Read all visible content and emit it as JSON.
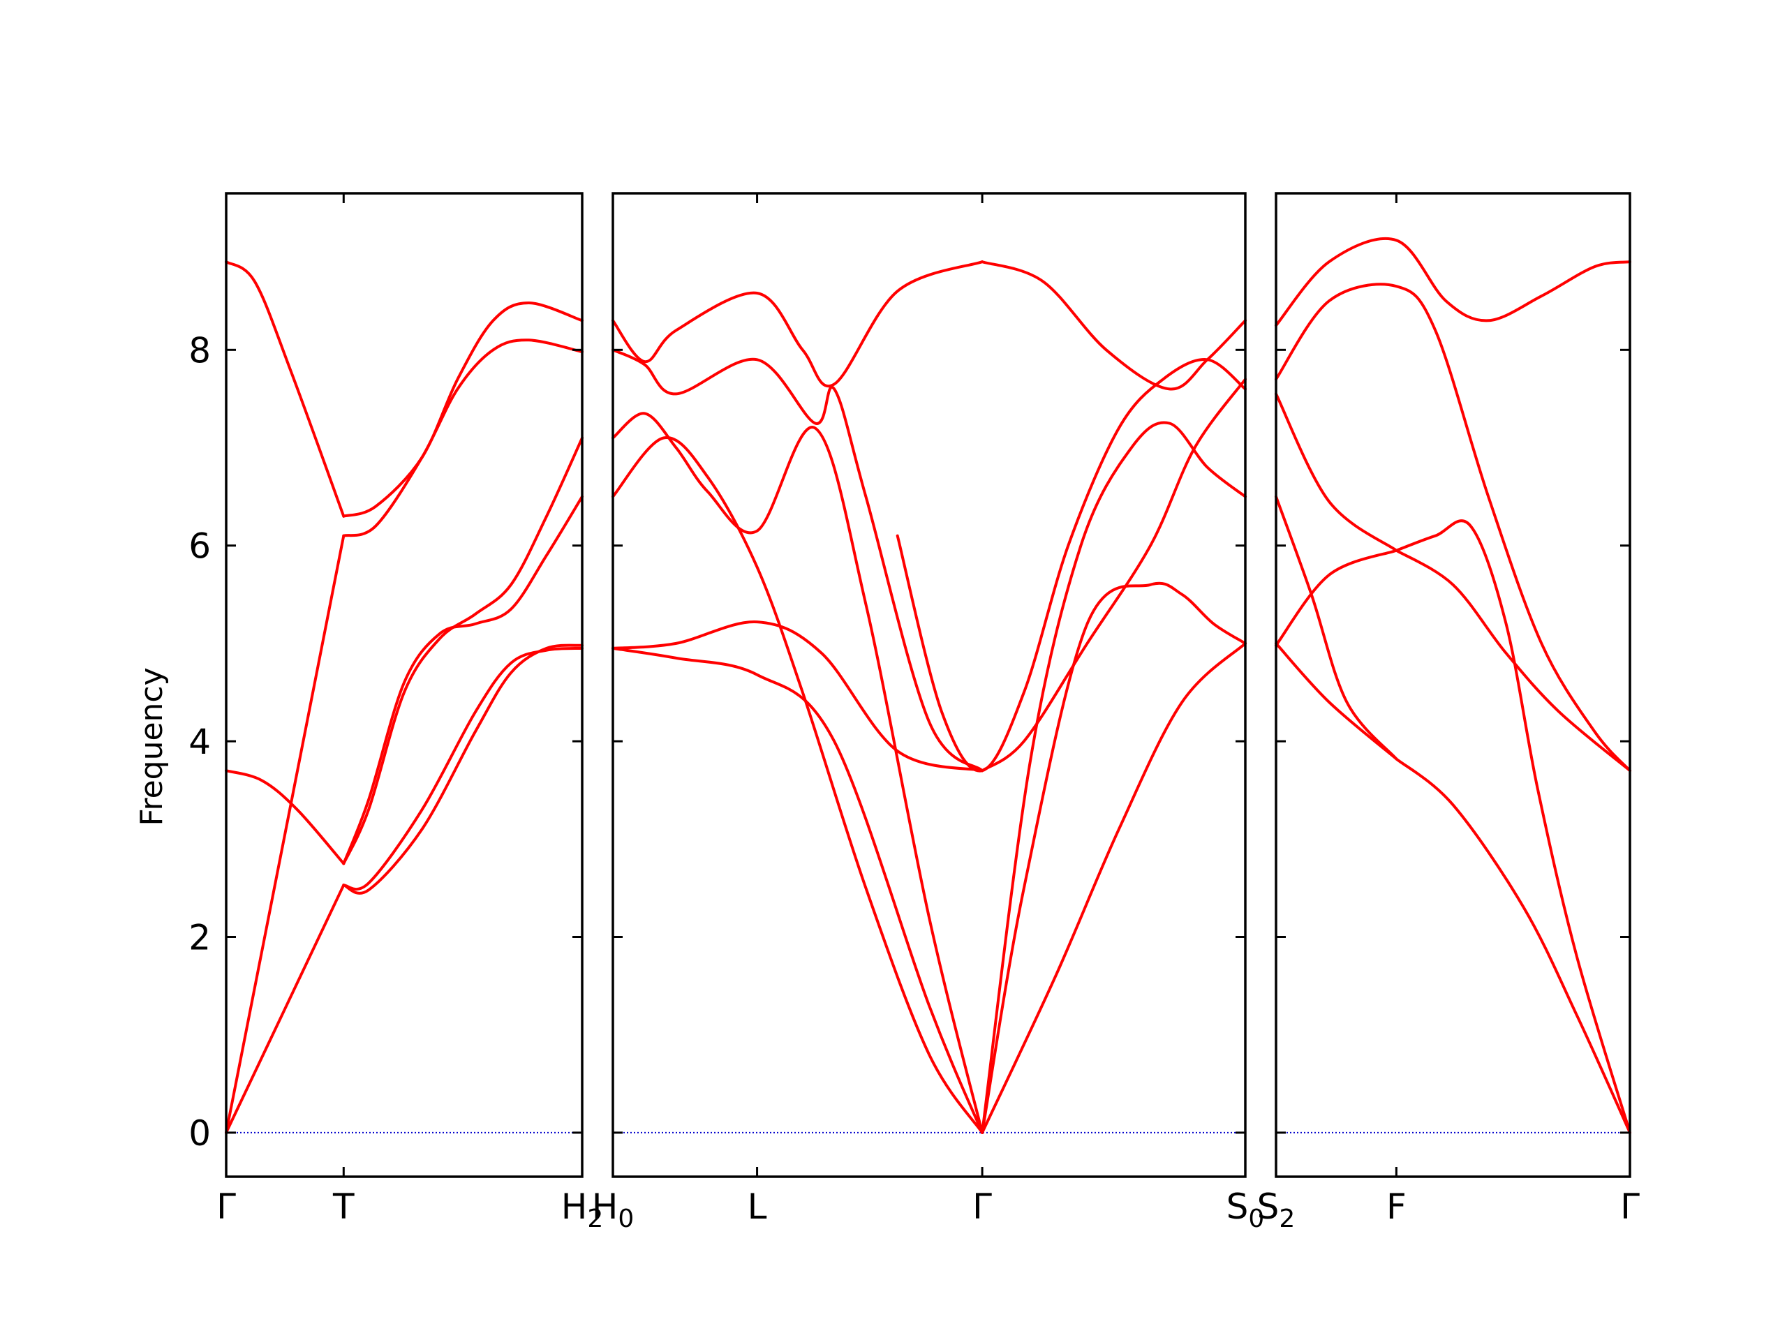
{
  "chart_data": {
    "type": "line",
    "ylabel": "Frequency",
    "ylim": [
      -0.45,
      9.6
    ],
    "yticks": [
      0,
      2,
      4,
      6,
      8
    ],
    "colors": {
      "band": "#ff0000",
      "zero_line": "#0000cc",
      "axes": "#000000"
    },
    "zero_line_style": "dotted",
    "panels": [
      {
        "xticks": [
          {
            "pos": 0.0,
            "label": "Γ",
            "sub": ""
          },
          {
            "pos": 0.33,
            "label": "T",
            "sub": ""
          },
          {
            "pos": 1.0,
            "label": "H",
            "sub": "2"
          }
        ],
        "bands": [
          {
            "x": [
              0,
              0.33
            ],
            "y": [
              0,
              2.53
            ]
          },
          {
            "x": [
              0.33,
              0.4,
              0.55,
              0.7,
              0.8,
              0.9,
              1.0
            ],
            "y": [
              2.53,
              2.48,
              3.1,
              4.1,
              4.7,
              4.95,
              4.98
            ]
          },
          {
            "x": [
              0.33,
              0.4,
              0.55,
              0.7,
              0.8,
              0.9,
              1.0
            ],
            "y": [
              2.53,
              2.55,
              3.3,
              4.3,
              4.8,
              4.93,
              4.95
            ]
          },
          {
            "x": [
              0,
              0.33
            ],
            "y": [
              0,
              6.1
            ]
          },
          {
            "x": [
              0.33,
              0.42,
              0.55,
              0.65,
              0.75,
              0.85,
              1.0
            ],
            "y": [
              6.1,
              6.2,
              6.9,
              7.6,
              8.0,
              8.1,
              7.98
            ]
          },
          {
            "x": [
              0.33,
              0.42,
              0.55,
              0.65,
              0.75,
              0.85,
              1.0
            ],
            "y": [
              6.3,
              6.4,
              6.9,
              7.7,
              8.3,
              8.48,
              8.3
            ]
          },
          {
            "x": [
              0,
              0.1,
              0.2,
              0.33
            ],
            "y": [
              3.7,
              3.6,
              3.3,
              2.75
            ]
          },
          {
            "x": [
              0.33,
              0.4,
              0.5,
              0.6,
              0.7,
              0.8,
              0.9,
              1.0
            ],
            "y": [
              2.75,
              3.3,
              4.5,
              5.05,
              5.3,
              5.6,
              6.3,
              7.1
            ]
          },
          {
            "x": [
              0.33,
              0.4,
              0.5,
              0.6,
              0.7,
              0.8,
              0.9,
              1.0
            ],
            "y": [
              2.75,
              3.4,
              4.6,
              5.1,
              5.2,
              5.35,
              5.9,
              6.5
            ]
          },
          {
            "x": [
              0,
              0.08,
              0.18,
              0.33
            ],
            "y": [
              8.9,
              8.7,
              7.8,
              6.3
            ]
          }
        ]
      },
      {
        "xticks": [
          {
            "pos": 0.0,
            "label": "H",
            "sub": "0"
          },
          {
            "pos": 0.228,
            "label": "L",
            "sub": ""
          },
          {
            "pos": 0.584,
            "label": "Γ",
            "sub": ""
          },
          {
            "pos": 1.0,
            "label": "S",
            "sub": "0"
          }
        ],
        "bands": [
          {
            "x": [
              0,
              0.1,
              0.228,
              0.35,
              0.5,
              0.584
            ],
            "y": [
              4.95,
              4.85,
              4.68,
              4.0,
              1.3,
              0
            ]
          },
          {
            "x": [
              0,
              0.1,
              0.228,
              0.33,
              0.45,
              0.584
            ],
            "y": [
              4.95,
              5.0,
              5.22,
              4.9,
              3.9,
              3.7
            ]
          },
          {
            "x": [
              0.584,
              0.7,
              0.8,
              0.9,
              1.0
            ],
            "y": [
              0,
              1.6,
              3.1,
              4.4,
              5.0
            ]
          },
          {
            "x": [
              0,
              0.08,
              0.15,
              0.228,
              0.3,
              0.4,
              0.5,
              0.584
            ],
            "y": [
              6.5,
              7.1,
              6.7,
              5.78,
              4.5,
              2.5,
              0.8,
              0
            ]
          },
          {
            "x": [
              0.584,
              0.65,
              0.75,
              0.85,
              0.9,
              0.95,
              1.0
            ],
            "y": [
              0,
              2.5,
              5.2,
              5.6,
              5.5,
              5.2,
              5.0
            ]
          },
          {
            "x": [
              0,
              0.05,
              0.1,
              0.15,
              0.228,
              0.32,
              0.4,
              0.5,
              0.584
            ],
            "y": [
              7.1,
              7.35,
              7.0,
              6.55,
              6.15,
              7.2,
              5.4,
              2.2,
              0
            ]
          },
          {
            "x": [
              0.584,
              0.66,
              0.74,
              0.82,
              0.88,
              0.94,
              1.0
            ],
            "y": [
              0,
              3.8,
              6.0,
              7.0,
              7.25,
              6.8,
              6.5
            ]
          },
          {
            "x": [
              0,
              0.05,
              0.1,
              0.228,
              0.32,
              0.35,
              0.4,
              0.5,
              0.584
            ],
            "y": [
              8.0,
              7.85,
              7.55,
              7.9,
              7.25,
              7.6,
              6.5,
              4.2,
              3.7
            ]
          },
          {
            "x": [
              0.584,
              0.65,
              0.75,
              0.85,
              0.92,
              1.0
            ],
            "y": [
              3.7,
              4.0,
              5.0,
              6.0,
              7.0,
              7.7
            ]
          },
          {
            "x": [
              0,
              0.05,
              0.1,
              0.228,
              0.3,
              0.35,
              0.45,
              0.584
            ],
            "y": [
              8.3,
              7.88,
              8.2,
              8.58,
              8.0,
              7.65,
              8.6,
              8.9
            ]
          },
          {
            "x": [
              0.584,
              0.68,
              0.78,
              0.88,
              0.94,
              1.0
            ],
            "y": [
              8.9,
              8.7,
              8.0,
              7.6,
              7.9,
              8.3
            ]
          },
          {
            "x": [
              0.45,
              0.52,
              0.584,
              0.65,
              0.72,
              0.8,
              0.87,
              0.94,
              1.0
            ],
            "y": [
              6.1,
              4.3,
              3.7,
              4.5,
              6.0,
              7.2,
              7.7,
              7.9,
              7.6
            ]
          }
        ]
      },
      {
        "xticks": [
          {
            "pos": 0.0,
            "label": "S",
            "sub": "2"
          },
          {
            "pos": 0.34,
            "label": "F",
            "sub": ""
          },
          {
            "pos": 1.0,
            "label": "Γ",
            "sub": ""
          }
        ],
        "bands": [
          {
            "x": [
              0,
              0.15,
              0.34
            ],
            "y": [
              5.0,
              4.4,
              3.82
            ]
          },
          {
            "x": [
              0.34,
              0.5,
              0.7,
              0.85,
              1.0
            ],
            "y": [
              3.82,
              3.35,
              2.3,
              1.2,
              0
            ]
          },
          {
            "x": [
              0,
              0.1,
              0.2,
              0.34
            ],
            "y": [
              6.5,
              5.5,
              4.4,
              3.82
            ]
          },
          {
            "x": [
              0,
              0.15,
              0.34
            ],
            "y": [
              4.98,
              5.7,
              5.95
            ]
          },
          {
            "x": [
              0.34,
              0.5,
              0.65,
              0.8,
              1.0
            ],
            "y": [
              5.95,
              5.6,
              4.9,
              4.3,
              3.7
            ]
          },
          {
            "x": [
              0,
              0.15,
              0.34
            ],
            "y": [
              7.55,
              6.45,
              5.95
            ]
          },
          {
            "x": [
              0.34,
              0.45,
              0.55,
              0.65,
              0.74,
              0.85,
              1.0
            ],
            "y": [
              5.95,
              6.1,
              6.2,
              5.2,
              3.5,
              1.8,
              0
            ]
          },
          {
            "x": [
              0,
              0.15,
              0.34,
              0.45,
              0.6,
              0.75,
              0.9,
              1.0
            ],
            "y": [
              7.7,
              8.5,
              8.65,
              8.2,
              6.5,
              5.0,
              4.1,
              3.7
            ]
          },
          {
            "x": [
              0,
              0.15,
              0.34,
              0.48,
              0.6,
              0.75,
              0.9,
              1.0
            ],
            "y": [
              8.25,
              8.9,
              9.12,
              8.5,
              8.3,
              8.55,
              8.85,
              8.9
            ]
          }
        ]
      }
    ]
  }
}
